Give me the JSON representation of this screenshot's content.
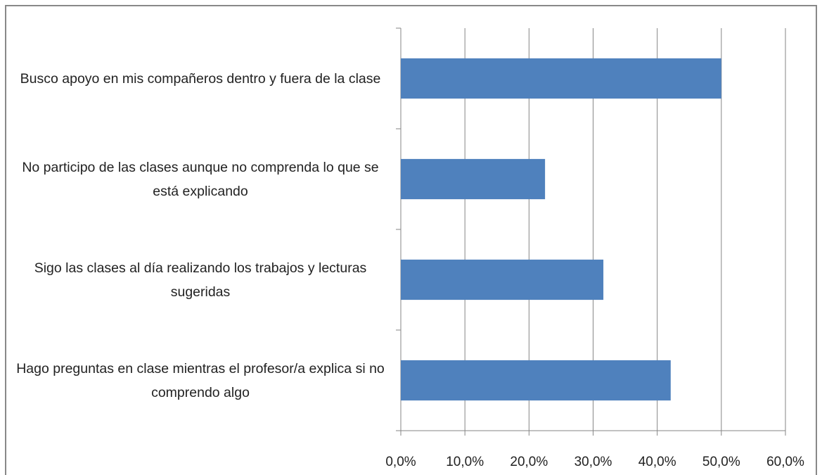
{
  "chart_data": {
    "type": "bar",
    "orientation": "horizontal",
    "categories": [
      "Busco apoyo en mis compañeros dentro y fuera de la clase",
      "No participo de las clases aunque no comprenda lo que se está explicando",
      "Sigo las clases al día realizando los trabajos y lecturas sugeridas",
      "Hago preguntas en clase mientras el profesor/a explica si no comprendo algo"
    ],
    "values": [
      50.0,
      22.5,
      31.6,
      42.1
    ],
    "color": "#4f81bd",
    "xlim": [
      0,
      60
    ],
    "xticks": [
      {
        "value": 0,
        "label": "0,0%"
      },
      {
        "value": 10,
        "label": "10,0%"
      },
      {
        "value": 20,
        "label": "20,0%"
      },
      {
        "value": 30,
        "label": "30,0%"
      },
      {
        "value": 40,
        "label": "40,0%"
      },
      {
        "value": 50,
        "label": "50,0%"
      },
      {
        "value": 60,
        "label": "60,0%"
      }
    ],
    "grid": true
  }
}
